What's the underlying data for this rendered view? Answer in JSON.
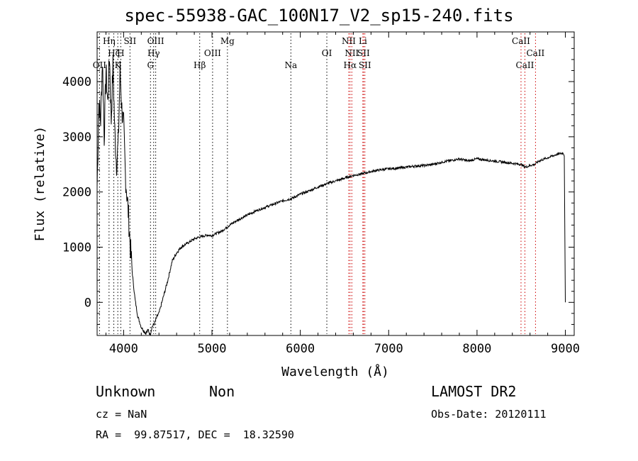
{
  "title": "spec-55938-GAC_100N17_V2_sp15-240.fits",
  "info": {
    "class": "Unknown",
    "subclass": "Non",
    "survey": "LAMOST DR2",
    "cz": "cz = NaN",
    "obs_date": "Obs-Date: 20120111",
    "coords": "RA =  99.87517, DEC =  18.32590"
  },
  "chart_data": {
    "type": "line",
    "title": "spec-55938-GAC_100N17_V2_sp15-240.fits",
    "xlabel": "Wavelength (Å)",
    "ylabel": "Flux (relative)",
    "xlim": [
      3700,
      9100
    ],
    "ylim": [
      -600,
      4900
    ],
    "xticks": [
      4000,
      5000,
      6000,
      7000,
      8000,
      9000
    ],
    "yticks": [
      0,
      1000,
      2000,
      3000,
      4000
    ],
    "grid": false,
    "line_color": "#000000",
    "marker_color_black": "#000000",
    "marker_color_red": "#cc0000",
    "series": [
      {
        "x": [
          3700,
          3720,
          3740,
          3760,
          3780,
          3800,
          3820,
          3840,
          3860,
          3880,
          3900,
          3920,
          3940,
          3960,
          3980,
          4000,
          4020,
          4050,
          4080,
          4100,
          4130,
          4160,
          4200,
          4250,
          4280,
          4300,
          4320,
          4350,
          4380,
          4400,
          4450,
          4500,
          4550,
          4600,
          4650,
          4700,
          4750,
          4800,
          4850,
          4900,
          4950,
          5000,
          5050,
          5100,
          5150,
          5200,
          5300,
          5400,
          5500,
          5600,
          5700,
          5800,
          5900,
          6000,
          6100,
          6200,
          6300,
          6400,
          6500,
          6600,
          6700,
          6800,
          6900,
          7000,
          7100,
          7200,
          7300,
          7400,
          7500,
          7600,
          7700,
          7800,
          7900,
          8000,
          8100,
          8200,
          8300,
          8400,
          8500,
          8550,
          8600,
          8650,
          8700,
          8800,
          8900,
          8950,
          8980,
          8990,
          9000
        ],
        "y": [
          2100,
          3600,
          3300,
          4400,
          3000,
          4200,
          3600,
          4500,
          3300,
          4300,
          3100,
          2500,
          2900,
          4200,
          3500,
          3200,
          2300,
          1700,
          900,
          500,
          50,
          -250,
          -450,
          -560,
          -500,
          -600,
          -450,
          -380,
          -250,
          -200,
          100,
          400,
          750,
          900,
          1000,
          1050,
          1100,
          1150,
          1180,
          1200,
          1220,
          1210,
          1250,
          1280,
          1340,
          1400,
          1500,
          1580,
          1660,
          1720,
          1780,
          1840,
          1880,
          1960,
          2020,
          2090,
          2150,
          2200,
          2250,
          2300,
          2330,
          2370,
          2400,
          2420,
          2430,
          2450,
          2470,
          2480,
          2500,
          2540,
          2570,
          2600,
          2560,
          2600,
          2580,
          2560,
          2540,
          2520,
          2500,
          2450,
          2480,
          2500,
          2560,
          2620,
          2680,
          2700,
          2700,
          2650,
          0
        ]
      }
    ],
    "lines": [
      {
        "label": "Hη",
        "x": 3835,
        "row": 0,
        "color": "black"
      },
      {
        "label": "SII",
        "x": 4072,
        "row": 0,
        "color": "black"
      },
      {
        "label": "OIII",
        "x": 4363,
        "row": 0,
        "color": "black"
      },
      {
        "label": "Mg",
        "x": 5175,
        "row": 0,
        "color": "black"
      },
      {
        "label": "NII",
        "x": 6548,
        "row": 0,
        "color": "red"
      },
      {
        "label": "Li",
        "x": 6708,
        "row": 0,
        "color": "red"
      },
      {
        "label": "CaII",
        "x": 8498,
        "row": 0,
        "color": "red"
      },
      {
        "label": "Hζ",
        "x": 3889,
        "row": 1,
        "color": "black"
      },
      {
        "label": "H",
        "x": 3968,
        "row": 1,
        "color": "black"
      },
      {
        "label": "Hγ",
        "x": 4340,
        "row": 1,
        "color": "black"
      },
      {
        "label": "OIII",
        "x": 5007,
        "row": 1,
        "color": "black"
      },
      {
        "label": "OI",
        "x": 6300,
        "row": 1,
        "color": "black"
      },
      {
        "label": "NII",
        "x": 6583,
        "row": 1,
        "color": "red"
      },
      {
        "label": "SII",
        "x": 6716,
        "row": 1,
        "color": "red"
      },
      {
        "label": "CaII",
        "x": 8662,
        "row": 1,
        "color": "red"
      },
      {
        "label": "OII",
        "x": 3727,
        "row": 2,
        "color": "black"
      },
      {
        "label": "K",
        "x": 3934,
        "row": 2,
        "color": "black"
      },
      {
        "label": "G",
        "x": 4304,
        "row": 2,
        "color": "black"
      },
      {
        "label": "Hβ",
        "x": 4861,
        "row": 2,
        "color": "black"
      },
      {
        "label": "Na",
        "x": 5893,
        "row": 2,
        "color": "black"
      },
      {
        "label": "Hα",
        "x": 6563,
        "row": 2,
        "color": "red"
      },
      {
        "label": "SII",
        "x": 6731,
        "row": 2,
        "color": "red"
      },
      {
        "label": "CaII",
        "x": 8542,
        "row": 2,
        "color": "red"
      }
    ]
  }
}
